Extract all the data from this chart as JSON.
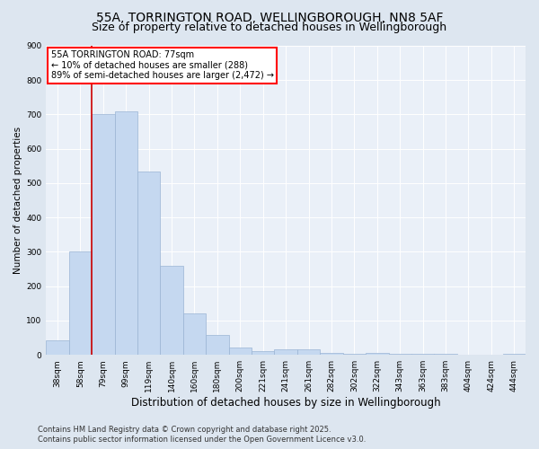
{
  "title": "55A, TORRINGTON ROAD, WELLINGBOROUGH, NN8 5AF",
  "subtitle": "Size of property relative to detached houses in Wellingborough",
  "xlabel": "Distribution of detached houses by size in Wellingborough",
  "ylabel": "Number of detached properties",
  "categories": [
    "38sqm",
    "58sqm",
    "79sqm",
    "99sqm",
    "119sqm",
    "140sqm",
    "160sqm",
    "180sqm",
    "200sqm",
    "221sqm",
    "241sqm",
    "261sqm",
    "282sqm",
    "302sqm",
    "322sqm",
    "343sqm",
    "363sqm",
    "383sqm",
    "404sqm",
    "424sqm",
    "444sqm"
  ],
  "values": [
    42,
    300,
    700,
    710,
    535,
    260,
    120,
    58,
    22,
    12,
    15,
    17,
    5,
    4,
    7,
    4,
    3,
    3,
    0,
    1,
    3
  ],
  "bar_color": "#c5d8f0",
  "bar_edge_color": "#9ab4d4",
  "vline_x": 1.5,
  "vline_color": "#cc0000",
  "annotation_title": "55A TORRINGTON ROAD: 77sqm",
  "annotation_line2": "← 10% of detached houses are smaller (288)",
  "annotation_line3": "89% of semi-detached houses are larger (2,472) →",
  "footer_line1": "Contains HM Land Registry data © Crown copyright and database right 2025.",
  "footer_line2": "Contains public sector information licensed under the Open Government Licence v3.0.",
  "ylim": [
    0,
    900
  ],
  "yticks": [
    0,
    100,
    200,
    300,
    400,
    500,
    600,
    700,
    800,
    900
  ],
  "bg_color": "#dde6f0",
  "plot_bg_color": "#eaf0f8",
  "title_fontsize": 10,
  "subtitle_fontsize": 9,
  "xlabel_fontsize": 8.5,
  "ylabel_fontsize": 7.5,
  "tick_fontsize": 6.5,
  "annot_fontsize": 7,
  "footer_fontsize": 6,
  "grid_color": "#ffffff"
}
